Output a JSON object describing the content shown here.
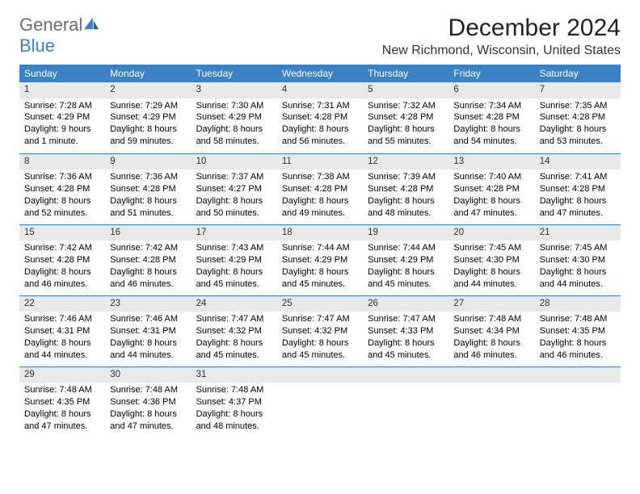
{
  "logo": {
    "text1": "General",
    "text2": "Blue"
  },
  "title": "December 2024",
  "location": "New Richmond, Wisconsin, United States",
  "colors": {
    "header_bg": "#3b82c4",
    "header_text": "#ffffff",
    "daynum_bg": "#e8e8e8",
    "row_sep": "#3b82c4",
    "logo_gray": "#6e6e6e",
    "logo_blue": "#3b82c4"
  },
  "weekdays": [
    "Sunday",
    "Monday",
    "Tuesday",
    "Wednesday",
    "Thursday",
    "Friday",
    "Saturday"
  ],
  "weeks": [
    [
      {
        "n": "1",
        "sr": "7:28 AM",
        "ss": "4:29 PM",
        "dl": "9 hours and 1 minute."
      },
      {
        "n": "2",
        "sr": "7:29 AM",
        "ss": "4:29 PM",
        "dl": "8 hours and 59 minutes."
      },
      {
        "n": "3",
        "sr": "7:30 AM",
        "ss": "4:29 PM",
        "dl": "8 hours and 58 minutes."
      },
      {
        "n": "4",
        "sr": "7:31 AM",
        "ss": "4:28 PM",
        "dl": "8 hours and 56 minutes."
      },
      {
        "n": "5",
        "sr": "7:32 AM",
        "ss": "4:28 PM",
        "dl": "8 hours and 55 minutes."
      },
      {
        "n": "6",
        "sr": "7:34 AM",
        "ss": "4:28 PM",
        "dl": "8 hours and 54 minutes."
      },
      {
        "n": "7",
        "sr": "7:35 AM",
        "ss": "4:28 PM",
        "dl": "8 hours and 53 minutes."
      }
    ],
    [
      {
        "n": "8",
        "sr": "7:36 AM",
        "ss": "4:28 PM",
        "dl": "8 hours and 52 minutes."
      },
      {
        "n": "9",
        "sr": "7:36 AM",
        "ss": "4:28 PM",
        "dl": "8 hours and 51 minutes."
      },
      {
        "n": "10",
        "sr": "7:37 AM",
        "ss": "4:27 PM",
        "dl": "8 hours and 50 minutes."
      },
      {
        "n": "11",
        "sr": "7:38 AM",
        "ss": "4:28 PM",
        "dl": "8 hours and 49 minutes."
      },
      {
        "n": "12",
        "sr": "7:39 AM",
        "ss": "4:28 PM",
        "dl": "8 hours and 48 minutes."
      },
      {
        "n": "13",
        "sr": "7:40 AM",
        "ss": "4:28 PM",
        "dl": "8 hours and 47 minutes."
      },
      {
        "n": "14",
        "sr": "7:41 AM",
        "ss": "4:28 PM",
        "dl": "8 hours and 47 minutes."
      }
    ],
    [
      {
        "n": "15",
        "sr": "7:42 AM",
        "ss": "4:28 PM",
        "dl": "8 hours and 46 minutes."
      },
      {
        "n": "16",
        "sr": "7:42 AM",
        "ss": "4:28 PM",
        "dl": "8 hours and 46 minutes."
      },
      {
        "n": "17",
        "sr": "7:43 AM",
        "ss": "4:29 PM",
        "dl": "8 hours and 45 minutes."
      },
      {
        "n": "18",
        "sr": "7:44 AM",
        "ss": "4:29 PM",
        "dl": "8 hours and 45 minutes."
      },
      {
        "n": "19",
        "sr": "7:44 AM",
        "ss": "4:29 PM",
        "dl": "8 hours and 45 minutes."
      },
      {
        "n": "20",
        "sr": "7:45 AM",
        "ss": "4:30 PM",
        "dl": "8 hours and 44 minutes."
      },
      {
        "n": "21",
        "sr": "7:45 AM",
        "ss": "4:30 PM",
        "dl": "8 hours and 44 minutes."
      }
    ],
    [
      {
        "n": "22",
        "sr": "7:46 AM",
        "ss": "4:31 PM",
        "dl": "8 hours and 44 minutes."
      },
      {
        "n": "23",
        "sr": "7:46 AM",
        "ss": "4:31 PM",
        "dl": "8 hours and 44 minutes."
      },
      {
        "n": "24",
        "sr": "7:47 AM",
        "ss": "4:32 PM",
        "dl": "8 hours and 45 minutes."
      },
      {
        "n": "25",
        "sr": "7:47 AM",
        "ss": "4:32 PM",
        "dl": "8 hours and 45 minutes."
      },
      {
        "n": "26",
        "sr": "7:47 AM",
        "ss": "4:33 PM",
        "dl": "8 hours and 45 minutes."
      },
      {
        "n": "27",
        "sr": "7:48 AM",
        "ss": "4:34 PM",
        "dl": "8 hours and 46 minutes."
      },
      {
        "n": "28",
        "sr": "7:48 AM",
        "ss": "4:35 PM",
        "dl": "8 hours and 46 minutes."
      }
    ],
    [
      {
        "n": "29",
        "sr": "7:48 AM",
        "ss": "4:35 PM",
        "dl": "8 hours and 47 minutes."
      },
      {
        "n": "30",
        "sr": "7:48 AM",
        "ss": "4:36 PM",
        "dl": "8 hours and 47 minutes."
      },
      {
        "n": "31",
        "sr": "7:48 AM",
        "ss": "4:37 PM",
        "dl": "8 hours and 48 minutes."
      },
      {
        "empty": true
      },
      {
        "empty": true
      },
      {
        "empty": true
      },
      {
        "empty": true
      }
    ]
  ],
  "labels": {
    "sunrise": "Sunrise: ",
    "sunset": "Sunset: ",
    "daylight": "Daylight: "
  }
}
